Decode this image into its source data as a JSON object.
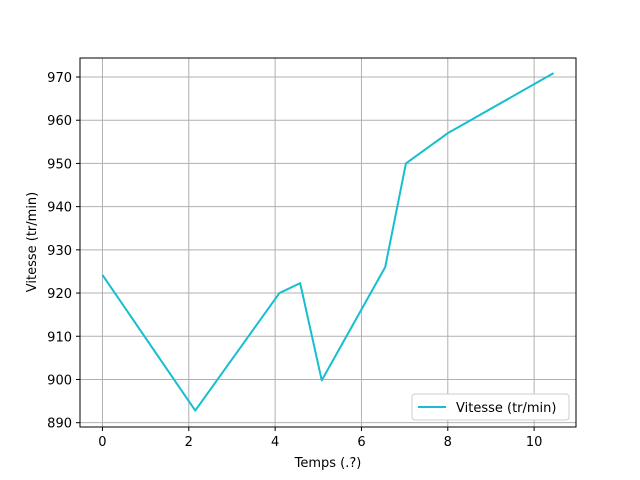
{
  "chart_data": {
    "type": "line",
    "title": "",
    "xlabel": "Temps (.?)",
    "ylabel": "Vitesse (tr/min)",
    "xlim": [
      -0.52,
      10.97
    ],
    "ylim": [
      889,
      974.4
    ],
    "x_ticks": [
      0,
      2,
      4,
      6,
      8,
      10
    ],
    "y_ticks": [
      890,
      900,
      910,
      920,
      930,
      940,
      950,
      960,
      970
    ],
    "grid": true,
    "legend_position": "bottom-right",
    "series": [
      {
        "name": "Vitesse (tr/min)",
        "color": "#17becf",
        "x": [
          0,
          2.15,
          4.1,
          4.58,
          5.08,
          6.55,
          7.03,
          8.0,
          10.45
        ],
        "y": [
          924.2,
          892.8,
          920.0,
          922.3,
          899.8,
          926.0,
          950.0,
          957.0,
          970.9
        ]
      }
    ]
  }
}
